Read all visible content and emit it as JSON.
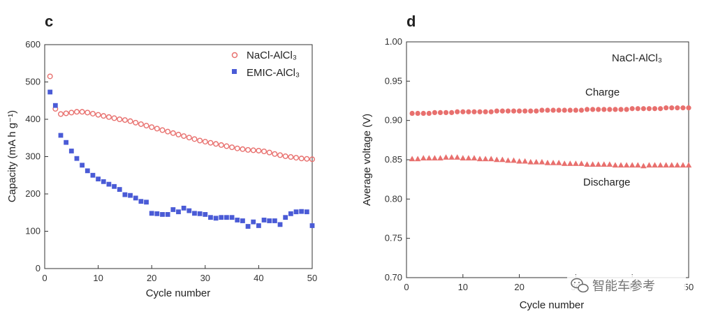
{
  "chart_data": [
    {
      "panel_label": "c",
      "type": "scatter",
      "xlabel": "Cycle number",
      "ylabel": "Capacity (mA h g⁻¹)",
      "xlim": [
        0,
        50
      ],
      "ylim": [
        0,
        600
      ],
      "xticks": [
        0,
        10,
        20,
        30,
        40,
        50
      ],
      "yticks": [
        0,
        100,
        200,
        300,
        400,
        500,
        600
      ],
      "legend_position": "top-right",
      "series": [
        {
          "name": "NaCl-AlCl₃",
          "color": "#e8706e",
          "marker": "circle-open",
          "x": [
            1,
            2,
            3,
            4,
            5,
            6,
            7,
            8,
            9,
            10,
            11,
            12,
            13,
            14,
            15,
            16,
            17,
            18,
            19,
            20,
            21,
            22,
            23,
            24,
            25,
            26,
            27,
            28,
            29,
            30,
            31,
            32,
            33,
            34,
            35,
            36,
            37,
            38,
            39,
            40,
            41,
            42,
            43,
            44,
            45,
            46,
            47,
            48,
            49,
            50
          ],
          "values": [
            515,
            428,
            414,
            416,
            418,
            420,
            420,
            418,
            415,
            412,
            409,
            406,
            403,
            400,
            398,
            395,
            391,
            387,
            383,
            379,
            375,
            371,
            367,
            363,
            359,
            355,
            351,
            347,
            343,
            340,
            337,
            334,
            331,
            328,
            325,
            322,
            320,
            318,
            317,
            316,
            314,
            311,
            307,
            304,
            301,
            299,
            297,
            295,
            294,
            293
          ]
        },
        {
          "name": "EMIC-AlCl₃",
          "color": "#4a5bd6",
          "marker": "square-filled",
          "x": [
            1,
            2,
            3,
            4,
            5,
            6,
            7,
            8,
            9,
            10,
            11,
            12,
            13,
            14,
            15,
            16,
            17,
            18,
            19,
            20,
            21,
            22,
            23,
            24,
            25,
            26,
            27,
            28,
            29,
            30,
            31,
            32,
            33,
            34,
            35,
            36,
            37,
            38,
            39,
            40,
            41,
            42,
            43,
            44,
            45,
            46,
            47,
            48,
            49,
            50
          ],
          "values": [
            473,
            437,
            357,
            338,
            315,
            295,
            277,
            262,
            250,
            240,
            233,
            226,
            220,
            212,
            198,
            196,
            189,
            180,
            178,
            148,
            147,
            145,
            145,
            158,
            152,
            162,
            155,
            148,
            147,
            145,
            137,
            135,
            137,
            137,
            137,
            130,
            128,
            113,
            125,
            115,
            130,
            128,
            128,
            118,
            137,
            147,
            152,
            153,
            152,
            115
          ]
        }
      ]
    },
    {
      "panel_label": "d",
      "type": "scatter",
      "xlabel": "Cycle number",
      "ylabel": "Average voltage (V)",
      "xlim": [
        0,
        50
      ],
      "ylim": [
        0.7,
        1.0
      ],
      "xticks": [
        0,
        10,
        20,
        30,
        40,
        50
      ],
      "yticks": [
        0.7,
        0.75,
        0.8,
        0.85,
        0.9,
        0.95,
        1.0
      ],
      "annotations": [
        "NaCl-AlCl₃",
        "Charge",
        "Discharge"
      ],
      "series": [
        {
          "label": "Charge",
          "color": "#e8706e",
          "marker": "circle-filled",
          "x": [
            1,
            2,
            3,
            4,
            5,
            6,
            7,
            8,
            9,
            10,
            11,
            12,
            13,
            14,
            15,
            16,
            17,
            18,
            19,
            20,
            21,
            22,
            23,
            24,
            25,
            26,
            27,
            28,
            29,
            30,
            31,
            32,
            33,
            34,
            35,
            36,
            37,
            38,
            39,
            40,
            41,
            42,
            43,
            44,
            45,
            46,
            47,
            48,
            49,
            50
          ],
          "values": [
            0.909,
            0.909,
            0.909,
            0.909,
            0.91,
            0.91,
            0.91,
            0.91,
            0.911,
            0.911,
            0.911,
            0.911,
            0.911,
            0.911,
            0.911,
            0.912,
            0.912,
            0.912,
            0.912,
            0.912,
            0.912,
            0.912,
            0.912,
            0.913,
            0.913,
            0.913,
            0.913,
            0.913,
            0.913,
            0.913,
            0.913,
            0.914,
            0.914,
            0.914,
            0.914,
            0.914,
            0.914,
            0.914,
            0.914,
            0.915,
            0.915,
            0.915,
            0.915,
            0.915,
            0.915,
            0.916,
            0.916,
            0.916,
            0.916,
            0.916
          ]
        },
        {
          "label": "Discharge",
          "color": "#e8706e",
          "marker": "triangle-filled",
          "x": [
            1,
            2,
            3,
            4,
            5,
            6,
            7,
            8,
            9,
            10,
            11,
            12,
            13,
            14,
            15,
            16,
            17,
            18,
            19,
            20,
            21,
            22,
            23,
            24,
            25,
            26,
            27,
            28,
            29,
            30,
            31,
            32,
            33,
            34,
            35,
            36,
            37,
            38,
            39,
            40,
            41,
            42,
            43,
            44,
            45,
            46,
            47,
            48,
            49,
            50
          ],
          "values": [
            0.851,
            0.851,
            0.852,
            0.852,
            0.852,
            0.852,
            0.853,
            0.853,
            0.853,
            0.852,
            0.852,
            0.852,
            0.851,
            0.851,
            0.851,
            0.85,
            0.85,
            0.849,
            0.849,
            0.848,
            0.848,
            0.847,
            0.847,
            0.847,
            0.846,
            0.846,
            0.846,
            0.845,
            0.845,
            0.845,
            0.845,
            0.844,
            0.844,
            0.844,
            0.844,
            0.844,
            0.843,
            0.843,
            0.843,
            0.843,
            0.843,
            0.842,
            0.843,
            0.843,
            0.843,
            0.843,
            0.843,
            0.843,
            0.843,
            0.843
          ]
        }
      ]
    }
  ],
  "watermark": {
    "text": "智能车参考",
    "icon": "wechat-icon"
  }
}
